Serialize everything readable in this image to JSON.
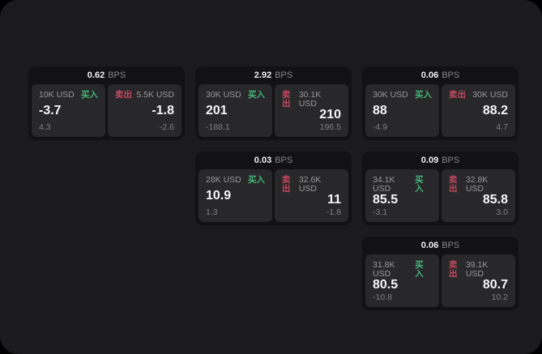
{
  "labels": {
    "bps_unit": "BPS",
    "buy": "买入",
    "sell": "卖出"
  },
  "colors": {
    "page_background": "#000000",
    "panel_background": "#1b1b1d",
    "card_background": "#121214",
    "subcard_background": "#28282a",
    "buy_green": "#45b478",
    "sell_red": "#c2495f",
    "value_white": "#f5f5f6",
    "label_gray": "#98989c",
    "dim_gray": "#7f7f83"
  },
  "cards": [
    {
      "bps": "0.62",
      "buy": {
        "amount": "10K USD",
        "price": "-3.7",
        "change": "4.3"
      },
      "sell": {
        "amount": "5.5K USD",
        "price": "-1.8",
        "change": "-2.6"
      }
    },
    {
      "bps": "2.92",
      "buy": {
        "amount": "30K USD",
        "price": "201",
        "change": "-188.1"
      },
      "sell": {
        "amount": "30.1K USD",
        "price": "210",
        "change": "196.5"
      }
    },
    {
      "bps": "0.06",
      "buy": {
        "amount": "30K USD",
        "price": "88",
        "change": "-4.9"
      },
      "sell": {
        "amount": "30K USD",
        "price": "88.2",
        "change": "4.7"
      }
    },
    {
      "bps": "0.03",
      "buy": {
        "amount": "28K USD",
        "price": "10.9",
        "change": "1.3"
      },
      "sell": {
        "amount": "32.6K USD",
        "price": "11",
        "change": "-1.8"
      }
    },
    {
      "bps": "0.09",
      "buy": {
        "amount": "34.1K USD",
        "price": "85.5",
        "change": "-3.1"
      },
      "sell": {
        "amount": "32.8K USD",
        "price": "85.8",
        "change": "3.0"
      }
    },
    {
      "bps": "0.06",
      "buy": {
        "amount": "31.8K USD",
        "price": "80.5",
        "change": "-10.8"
      },
      "sell": {
        "amount": "39.1K USD",
        "price": "80.7",
        "change": "10.2"
      }
    }
  ]
}
